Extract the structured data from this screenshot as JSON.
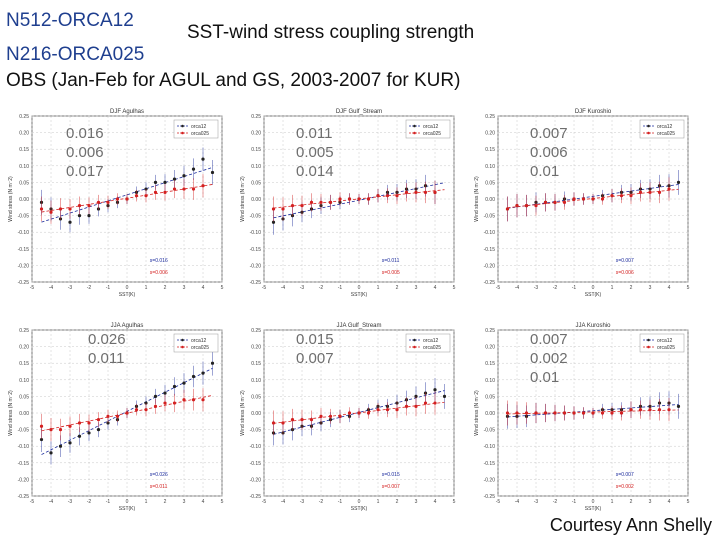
{
  "header": {
    "line1": "N512-ORCA12",
    "title": "SST-wind stress coupling strength",
    "line2": "N216-ORCA025",
    "line3": "OBS (Jan-Feb for AGUL and GS, 2003-2007 for KUR)"
  },
  "credit": "Courtesy Ann Shelly",
  "colors": {
    "header_blue": "#1f3f8f",
    "orca12": "#1a2a9c",
    "orca025": "#d42020",
    "stats_gray": "#6e6e6e",
    "grid": "#c8c8c8"
  },
  "chart_data": [
    {
      "type": "scatter",
      "title": "DJF Agulhas",
      "xlabel": "SST(K)",
      "ylabel": "Wind stress (N m⁻2)",
      "xlim": [
        -5,
        5
      ],
      "ylim": [
        -0.25,
        0.25
      ],
      "legend": "top-right",
      "legend_entries": [
        "orca12",
        "orca025"
      ],
      "annotations": [
        "s=0.016",
        "s=0.006"
      ],
      "coupling_strength": [
        "0.016",
        "0.006",
        "0.017"
      ],
      "series": [
        {
          "name": "orca12",
          "color": "#1a2a9c",
          "x": [
            -4.5,
            -4.0,
            -3.5,
            -3.0,
            -2.5,
            -2.0,
            -1.5,
            -1.0,
            -0.5,
            0.0,
            0.5,
            1.0,
            1.5,
            2.0,
            2.5,
            3.0,
            3.5,
            4.0,
            4.5
          ],
          "y": [
            -0.01,
            -0.03,
            -0.06,
            -0.07,
            -0.05,
            -0.05,
            -0.03,
            -0.02,
            -0.01,
            0.0,
            0.02,
            0.03,
            0.05,
            0.05,
            0.06,
            0.07,
            0.09,
            0.12,
            0.08
          ]
        },
        {
          "name": "orca025",
          "color": "#d42020",
          "x": [
            -4.5,
            -4.0,
            -3.5,
            -3.0,
            -2.5,
            -2.0,
            -1.5,
            -1.0,
            -0.5,
            0.0,
            0.5,
            1.0,
            1.5,
            2.0,
            2.5,
            3.0,
            3.5,
            4.0
          ],
          "y": [
            -0.03,
            -0.04,
            -0.03,
            -0.03,
            -0.02,
            -0.02,
            -0.01,
            -0.01,
            0.0,
            0.0,
            0.01,
            0.01,
            0.02,
            0.02,
            0.03,
            0.03,
            0.03,
            0.04
          ]
        }
      ]
    },
    {
      "type": "scatter",
      "title": "DJF Gulf_Stream",
      "xlabel": "SST(K)",
      "ylabel": "Wind stress (N m⁻2)",
      "xlim": [
        -5,
        5
      ],
      "ylim": [
        -0.25,
        0.25
      ],
      "legend": "top-right",
      "legend_entries": [
        "orca12",
        "orca025"
      ],
      "annotations": [
        "s=0.011",
        "s=0.005"
      ],
      "coupling_strength": [
        "0.011",
        "0.005",
        "0.014"
      ],
      "series": [
        {
          "name": "orca12",
          "color": "#1a2a9c",
          "x": [
            -4.5,
            -4.0,
            -3.5,
            -3.0,
            -2.5,
            -2.0,
            -1.5,
            -1.0,
            -0.5,
            0.0,
            0.5,
            1.0,
            1.5,
            2.0,
            2.5,
            3.0,
            3.5,
            4.0
          ],
          "y": [
            -0.07,
            -0.06,
            -0.05,
            -0.04,
            -0.03,
            -0.02,
            -0.01,
            -0.01,
            0.0,
            0.0,
            0.0,
            0.01,
            0.02,
            0.02,
            0.03,
            0.03,
            0.04,
            0.02
          ]
        },
        {
          "name": "orca025",
          "color": "#d42020",
          "x": [
            -4.5,
            -4.0,
            -3.5,
            -3.0,
            -2.5,
            -2.0,
            -1.5,
            -1.0,
            -0.5,
            0.0,
            0.5,
            1.0,
            1.5,
            2.0,
            2.5,
            3.0,
            3.5,
            4.0
          ],
          "y": [
            -0.03,
            -0.03,
            -0.02,
            -0.02,
            -0.01,
            -0.01,
            -0.01,
            0.0,
            0.0,
            0.0,
            0.0,
            0.01,
            0.01,
            0.01,
            0.02,
            0.02,
            0.02,
            0.02
          ]
        }
      ]
    },
    {
      "type": "scatter",
      "title": "DJF Kuroshio",
      "xlabel": "SST(K)",
      "ylabel": "Wind stress (N m⁻2)",
      "xlim": [
        -5,
        5
      ],
      "ylim": [
        -0.25,
        0.25
      ],
      "legend": "top-right",
      "legend_entries": [
        "orca12",
        "orca025"
      ],
      "annotations": [
        "s=0.007",
        "s=0.006"
      ],
      "coupling_strength": [
        "0.007",
        "0.006",
        "0.01"
      ],
      "series": [
        {
          "name": "orca12",
          "color": "#1a2a9c",
          "x": [
            -4.5,
            -4.0,
            -3.5,
            -3.0,
            -2.5,
            -2.0,
            -1.5,
            -1.0,
            -0.5,
            0.0,
            0.5,
            1.0,
            1.5,
            2.0,
            2.5,
            3.0,
            3.5,
            4.0,
            4.5
          ],
          "y": [
            -0.03,
            -0.02,
            -0.02,
            -0.01,
            -0.01,
            -0.01,
            0.0,
            0.0,
            0.0,
            0.0,
            0.01,
            0.01,
            0.02,
            0.02,
            0.03,
            0.03,
            0.04,
            0.04,
            0.05
          ]
        },
        {
          "name": "orca025",
          "color": "#d42020",
          "x": [
            -4.5,
            -4.0,
            -3.5,
            -3.0,
            -2.5,
            -2.0,
            -1.5,
            -1.0,
            -0.5,
            0.0,
            0.5,
            1.0,
            1.5,
            2.0,
            2.5,
            3.0,
            3.5,
            4.0
          ],
          "y": [
            -0.03,
            -0.02,
            -0.02,
            -0.02,
            -0.01,
            -0.01,
            -0.01,
            0.0,
            0.0,
            0.0,
            0.0,
            0.01,
            0.01,
            0.01,
            0.02,
            0.02,
            0.02,
            0.03
          ]
        }
      ]
    },
    {
      "type": "scatter",
      "title": "JJA Agulhas",
      "xlabel": "SST(K)",
      "ylabel": "Wind stress (N m⁻2)",
      "xlim": [
        -5,
        5
      ],
      "ylim": [
        -0.25,
        0.25
      ],
      "legend": "top-right",
      "legend_entries": [
        "orca12",
        "orca025"
      ],
      "annotations": [
        "s=0.026",
        "s=0.011"
      ],
      "coupling_strength": [
        "0.026",
        "0.011"
      ],
      "series": [
        {
          "name": "orca12",
          "color": "#1a2a9c",
          "x": [
            -4.5,
            -4.0,
            -3.5,
            -3.0,
            -2.5,
            -2.0,
            -1.5,
            -1.0,
            -0.5,
            0.0,
            0.5,
            1.0,
            1.5,
            2.0,
            2.5,
            3.0,
            3.5,
            4.0,
            4.5
          ],
          "y": [
            -0.08,
            -0.12,
            -0.1,
            -0.09,
            -0.07,
            -0.06,
            -0.05,
            -0.03,
            -0.02,
            0.0,
            0.02,
            0.03,
            0.05,
            0.06,
            0.08,
            0.09,
            0.11,
            0.12,
            0.15
          ]
        },
        {
          "name": "orca025",
          "color": "#d42020",
          "x": [
            -4.5,
            -4.0,
            -3.5,
            -3.0,
            -2.5,
            -2.0,
            -1.5,
            -1.0,
            -0.5,
            0.0,
            0.5,
            1.0,
            1.5,
            2.0,
            2.5,
            3.0,
            3.5,
            4.0
          ],
          "y": [
            -0.04,
            -0.05,
            -0.05,
            -0.04,
            -0.03,
            -0.03,
            -0.02,
            -0.01,
            -0.01,
            0.0,
            0.01,
            0.01,
            0.02,
            0.03,
            0.03,
            0.04,
            0.04,
            0.04
          ]
        }
      ]
    },
    {
      "type": "scatter",
      "title": "JJA Gulf_Stream",
      "xlabel": "SST(K)",
      "ylabel": "Wind stress (N m⁻2)",
      "xlim": [
        -5,
        5
      ],
      "ylim": [
        -0.25,
        0.25
      ],
      "legend": "top-right",
      "legend_entries": [
        "orca12",
        "orca025"
      ],
      "annotations": [
        "s=0.015",
        "s=0.007"
      ],
      "coupling_strength": [
        "0.015",
        "0.007"
      ],
      "series": [
        {
          "name": "orca12",
          "color": "#1a2a9c",
          "x": [
            -4.5,
            -4.0,
            -3.5,
            -3.0,
            -2.5,
            -2.0,
            -1.5,
            -1.0,
            -0.5,
            0.0,
            0.5,
            1.0,
            1.5,
            2.0,
            2.5,
            3.0,
            3.5,
            4.0,
            4.5
          ],
          "y": [
            -0.06,
            -0.06,
            -0.05,
            -0.04,
            -0.04,
            -0.03,
            -0.02,
            -0.01,
            -0.01,
            0.0,
            0.01,
            0.02,
            0.02,
            0.03,
            0.04,
            0.05,
            0.06,
            0.07,
            0.05
          ]
        },
        {
          "name": "orca025",
          "color": "#d42020",
          "x": [
            -4.5,
            -4.0,
            -3.5,
            -3.0,
            -2.5,
            -2.0,
            -1.5,
            -1.0,
            -0.5,
            0.0,
            0.5,
            1.0,
            1.5,
            2.0,
            2.5,
            3.0,
            3.5,
            4.0
          ],
          "y": [
            -0.03,
            -0.03,
            -0.02,
            -0.02,
            -0.02,
            -0.01,
            -0.01,
            -0.01,
            0.0,
            0.0,
            0.0,
            0.01,
            0.01,
            0.01,
            0.02,
            0.02,
            0.03,
            0.03
          ]
        }
      ]
    },
    {
      "type": "scatter",
      "title": "JJA Kuroshio",
      "xlabel": "SST(K)",
      "ylabel": "Wind stress (N m⁻2)",
      "xlim": [
        -5,
        5
      ],
      "ylim": [
        -0.25,
        0.25
      ],
      "legend": "top-right",
      "legend_entries": [
        "orca12",
        "orca025"
      ],
      "annotations": [
        "s=0.007",
        "s=0.002"
      ],
      "coupling_strength": [
        "0.007",
        "0.002",
        "0.01"
      ],
      "series": [
        {
          "name": "orca12",
          "color": "#1a2a9c",
          "x": [
            -4.5,
            -4.0,
            -3.5,
            -3.0,
            -2.5,
            -2.0,
            -1.5,
            -1.0,
            -0.5,
            0.0,
            0.5,
            1.0,
            1.5,
            2.0,
            2.5,
            3.0,
            3.5,
            4.0,
            4.5
          ],
          "y": [
            -0.01,
            -0.01,
            -0.01,
            0.0,
            0.0,
            0.0,
            0.0,
            0.0,
            0.0,
            0.0,
            0.01,
            0.01,
            0.01,
            0.01,
            0.02,
            0.02,
            0.03,
            0.03,
            0.02
          ]
        },
        {
          "name": "orca025",
          "color": "#d42020",
          "x": [
            -4.5,
            -4.0,
            -3.5,
            -3.0,
            -2.5,
            -2.0,
            -1.5,
            -1.0,
            -0.5,
            0.0,
            0.5,
            1.0,
            1.5,
            2.0,
            2.5,
            3.0,
            3.5,
            4.0
          ],
          "y": [
            0.0,
            0.0,
            0.0,
            0.0,
            0.0,
            0.0,
            0.0,
            0.0,
            0.0,
            0.0,
            0.0,
            0.0,
            0.0,
            0.01,
            0.01,
            0.01,
            0.01,
            0.01
          ]
        }
      ]
    }
  ]
}
